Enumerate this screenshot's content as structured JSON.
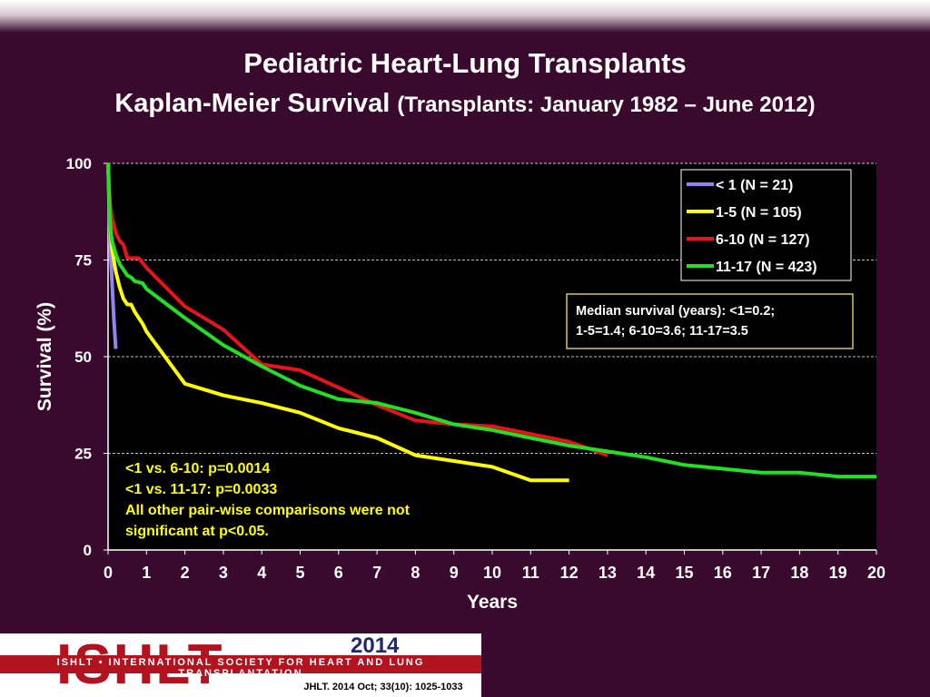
{
  "header": {
    "title": "Pediatric Heart-Lung Transplants",
    "subtitle_main": "Kaplan-Meier Survival",
    "subtitle_paren": "(Transplants: January 1982 – June 2012)"
  },
  "chart_data": {
    "type": "line",
    "xlabel": "Years",
    "ylabel": "Survival (%)",
    "xlim": [
      0,
      20
    ],
    "ylim": [
      0,
      100
    ],
    "x_ticks": [
      "0",
      "1",
      "2",
      "3",
      "4",
      "5",
      "6",
      "7",
      "8",
      "9",
      "10",
      "11",
      "12",
      "13",
      "14",
      "15",
      "16",
      "17",
      "18",
      "19",
      "20"
    ],
    "y_ticks": [
      "0",
      "25",
      "50",
      "75",
      "100"
    ],
    "grid": "horizontal dashed",
    "legend_position": "top-right",
    "series": [
      {
        "name": "< 1 (N = 21)",
        "color": "#9a7ff0",
        "x": [
          0,
          0.05,
          0.1,
          0.15,
          0.2
        ],
        "y": [
          100,
          80,
          70,
          60,
          52
        ]
      },
      {
        "name": "1-5 (N = 105)",
        "color": "#ffff00",
        "x": [
          0,
          0.05,
          0.1,
          0.2,
          0.3,
          0.4,
          0.5,
          0.6,
          0.7,
          0.9,
          1,
          2,
          3,
          4,
          5,
          6,
          7,
          8,
          9,
          10,
          11,
          12
        ],
        "y": [
          100,
          85,
          78,
          72,
          68,
          65,
          63.5,
          63.5,
          61.5,
          58.5,
          56.5,
          43,
          40,
          38,
          35.5,
          31.5,
          29,
          24.5,
          23,
          21.5,
          18,
          18
        ]
      },
      {
        "name": "6-10 (N = 127)",
        "color": "#e8141b",
        "x": [
          0,
          0.05,
          0.1,
          0.2,
          0.3,
          0.4,
          0.5,
          0.6,
          0.8,
          1,
          2,
          3,
          4,
          5,
          6,
          7,
          8,
          9,
          10,
          11,
          12,
          13
        ],
        "y": [
          100,
          90,
          86,
          82,
          80,
          79,
          75.5,
          75.5,
          75.5,
          73,
          63,
          57,
          48,
          46.5,
          42,
          37.5,
          33.5,
          32.5,
          32,
          30,
          28,
          24.5
        ]
      },
      {
        "name": "11-17 (N = 423)",
        "color": "#22e022",
        "x": [
          0,
          0.05,
          0.1,
          0.2,
          0.3,
          0.4,
          0.5,
          0.6,
          0.7,
          0.9,
          1,
          2,
          3,
          4,
          5,
          6,
          7,
          8,
          9,
          10,
          11,
          12,
          13,
          14,
          15,
          16,
          17,
          18,
          19,
          20
        ],
        "y": [
          100,
          85,
          80,
          76.5,
          74,
          72.5,
          71,
          70.5,
          69.5,
          69,
          67.5,
          60,
          53,
          47.5,
          42.5,
          39,
          38,
          35.5,
          32.5,
          31,
          29,
          27,
          25.5,
          24,
          22,
          21,
          20,
          20,
          19,
          19
        ]
      }
    ]
  },
  "annotations": {
    "median_line1": "Median survival (years): <1=0.2;",
    "median_line2": "1-5=1.4; 6-10=3.6; 11-17=3.5",
    "pvalue_line1": "<1 vs. 6-10: p=0.0014",
    "pvalue_line2": "<1 vs. 11-17: p=0.0033",
    "pvalue_line3": "All other pair-wise comparisons were not",
    "pvalue_line4": "significant at p<0.05."
  },
  "footer": {
    "logo": "ISHLT",
    "org": "ISHLT • INTERNATIONAL SOCIETY FOR HEART AND LUNG TRANSPLANTATION",
    "year": "2014",
    "citation": "JHLT. 2014 Oct; 33(10): 1025-1033"
  }
}
